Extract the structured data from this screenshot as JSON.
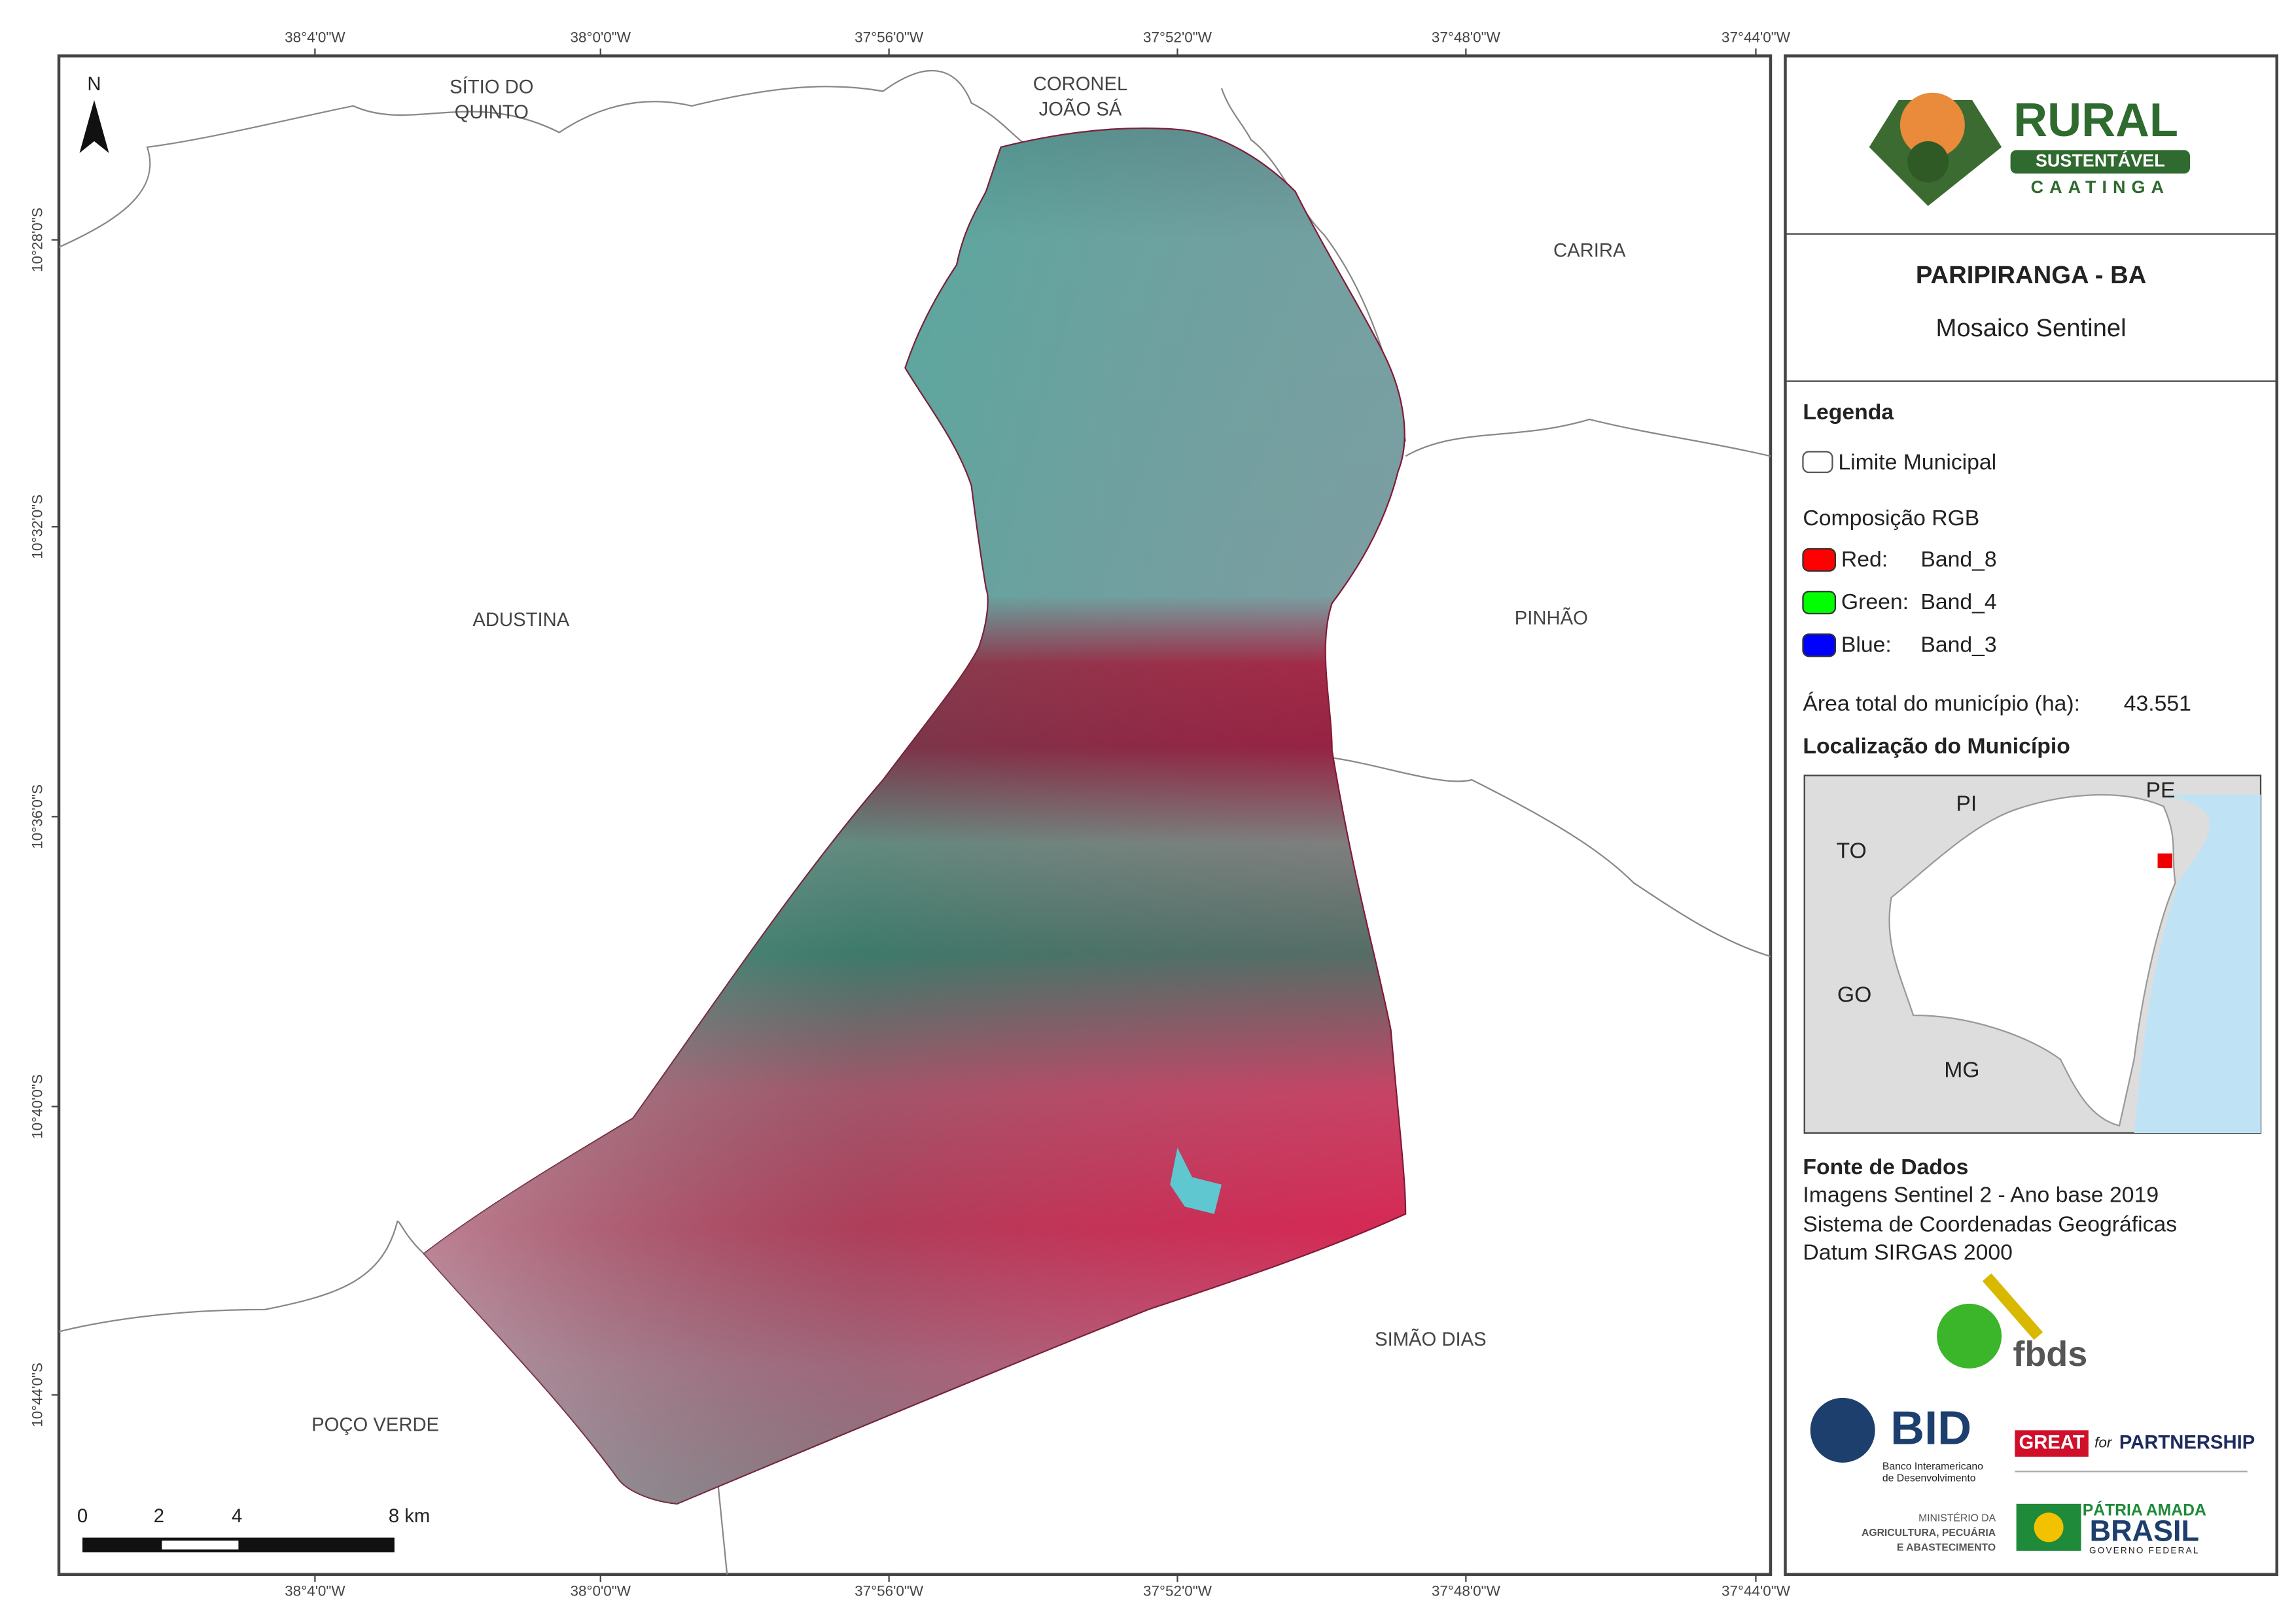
{
  "map": {
    "x_ticks": [
      "38°4'0\"W",
      "38°0'0\"W",
      "37°56'0\"W",
      "37°52'0\"W",
      "37°48'0\"W",
      "37°44'0\"W"
    ],
    "y_ticks": [
      "10°28'0\"S",
      "10°32'0\"S",
      "10°36'0\"S",
      "10°40'0\"S",
      "10°44'0\"S"
    ],
    "north": "N",
    "places": [
      [
        "SÍTIO DO",
        "QUINTO"
      ],
      [
        "CORONEL",
        "JOÃO SÁ"
      ],
      [
        "CARIRA"
      ],
      [
        "ADUSTINA"
      ],
      [
        "PINHÃO"
      ],
      [
        "SIMÃO DIAS"
      ],
      [
        "POÇO VERDE"
      ]
    ],
    "scale_labels": [
      "0",
      "2",
      "4",
      "8 km"
    ]
  },
  "panel": {
    "logo": {
      "title": "RURAL",
      "sub": "SUSTENTÁVEL",
      "sub2": "CAATINGA"
    },
    "title": "PARIPIRANGA - BA",
    "subtitle": "Mosaico Sentinel",
    "legend": {
      "heading": "Legenda",
      "boundary": "Limite Municipal",
      "rgb_heading": "Composição RGB",
      "bands": [
        {
          "channel": "Red:",
          "band": "Band_8",
          "color": "#ff0000"
        },
        {
          "channel": "Green:",
          "band": "Band_4",
          "color": "#00ff00"
        },
        {
          "channel": "Blue:",
          "band": "Band_3",
          "color": "#0000ff"
        }
      ]
    },
    "area_label": "Área total do município (ha):",
    "area_value": "43.551",
    "location_heading": "Localização do Município",
    "location_labels": [
      "PI",
      "PE",
      "TO",
      "GO",
      "MG"
    ],
    "sources_heading": "Fonte de Dados",
    "sources": [
      "Imagens Sentinel 2 - Ano base 2019",
      "Sistema de Coordenadas Geográficas",
      "Datum SIRGAS 2000"
    ],
    "logos": [
      "fbds",
      "BID",
      "Banco Interamericano",
      "de Desenvolvimento",
      "GREAT",
      "for",
      "PARTNERSHIP",
      "MINISTÉRIO DA",
      "AGRICULTURA, PECUÁRIA",
      "E ABASTECIMENTO",
      "PÁTRIA AMADA",
      "BRASIL",
      "GOVERNO FEDERAL"
    ]
  }
}
